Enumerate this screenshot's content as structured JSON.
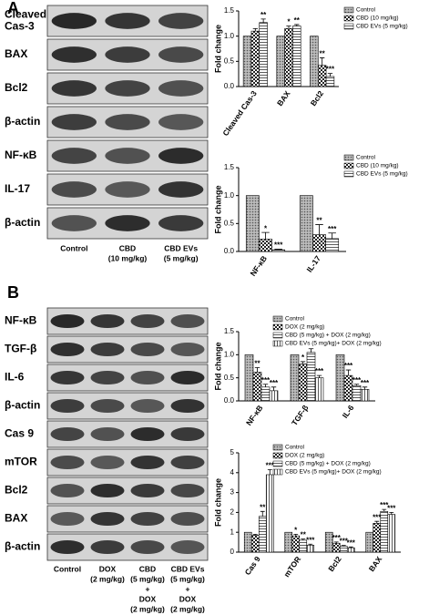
{
  "panel_labels": [
    "A",
    "B"
  ],
  "blots": [
    {
      "rows": [
        [
          "Cleaved",
          "Cas-3"
        ],
        [
          "BAX"
        ],
        [
          "Bcl2"
        ],
        [
          "β-actin"
        ],
        [
          "NF-κB"
        ],
        [
          "IL-17"
        ],
        [
          "β-actin"
        ]
      ],
      "lanes": [
        [
          "Control"
        ],
        [
          "CBD",
          "(10 mg/kg)"
        ],
        [
          "CBD EVs",
          "(5 mg/kg)"
        ]
      ]
    },
    {
      "rows": [
        [
          "NF-κB"
        ],
        [
          "TGF-β"
        ],
        [
          "IL-6"
        ],
        [
          "β-actin"
        ],
        [
          "Cas 9"
        ],
        [
          "mTOR"
        ],
        [
          "Bcl2"
        ],
        [
          "BAX"
        ],
        [
          "β-actin"
        ]
      ],
      "lanes": [
        [
          "Control"
        ],
        [
          "DOX",
          "(2 mg/kg)"
        ],
        [
          "CBD",
          "(5 mg/kg)",
          "+",
          "DOX",
          "(2 mg/kg)"
        ],
        [
          "CBD EVs",
          "(5 mg/kg)",
          "+",
          "DOX",
          "(2 mg/kg)"
        ]
      ]
    }
  ],
  "chart_data": [
    {
      "type": "bar",
      "y_label": "Fold change",
      "categories": [
        "Cleaved Cas-3",
        "BAX",
        "Bcl2"
      ],
      "ylim": [
        0,
        1.5
      ],
      "yticks": [
        {
          "value": 0,
          "label": "0.0"
        },
        {
          "value": 0.5,
          "label": "0.5"
        },
        {
          "value": 1,
          "label": "1.0"
        },
        {
          "value": 1.5,
          "label": "1.5"
        }
      ],
      "legend": "top-right",
      "series": [
        {
          "name": "Control",
          "pattern": "dots",
          "values": [
            1,
            1,
            1
          ]
        },
        {
          "name": "CBD (10 mg/kg)",
          "pattern": "checker",
          "values": [
            1.1,
            1.15,
            0.42
          ],
          "errors": [
            0.05,
            0.05,
            0.15
          ],
          "annotations": [
            null,
            "*",
            "**"
          ]
        },
        {
          "name": "CBD EVs (5 mg/kg)",
          "pattern": "hlines",
          "values": [
            1.27,
            1.2,
            0.2
          ],
          "errors": [
            0.07,
            0.03,
            0.06
          ],
          "annotations": [
            "**",
            "**",
            "***"
          ]
        }
      ]
    },
    {
      "type": "bar",
      "y_label": "Fold change",
      "categories": [
        "NF-κB",
        "IL-17"
      ],
      "ylim": [
        0,
        1.5
      ],
      "yticks": [
        {
          "value": 0,
          "label": "0.0"
        },
        {
          "value": 0.5,
          "label": "0.5"
        },
        {
          "value": 1,
          "label": "1.0"
        },
        {
          "value": 1.5,
          "label": "1.5"
        }
      ],
      "legend": "top-right",
      "series": [
        {
          "name": "Control",
          "pattern": "dots",
          "values": [
            1,
            1
          ]
        },
        {
          "name": "CBD (10 mg/kg)",
          "pattern": "checker",
          "values": [
            0.22,
            0.3
          ],
          "errors": [
            0.12,
            0.18
          ],
          "annotations": [
            "*",
            "**"
          ]
        },
        {
          "name": "CBD EVs (5 mg/kg)",
          "pattern": "hlines",
          "values": [
            0.03,
            0.23
          ],
          "errors": [
            0.01,
            0.1
          ],
          "annotations": [
            "***",
            "***"
          ]
        }
      ]
    },
    {
      "type": "bar",
      "y_label": "Fold change",
      "categories": [
        "NF-κB",
        "TGF-β",
        "IL-6"
      ],
      "ylim": [
        0,
        1.5
      ],
      "yticks": [
        {
          "value": 0,
          "label": "0.0"
        },
        {
          "value": 0.5,
          "label": "0.5"
        },
        {
          "value": 1,
          "label": "1.0"
        },
        {
          "value": 1.5,
          "label": "1.5"
        }
      ],
      "legend": "top-right",
      "series": [
        {
          "name": "Control",
          "pattern": "dots",
          "values": [
            1,
            1,
            1
          ]
        },
        {
          "name": "DOX (2 mg/kg)",
          "pattern": "checker",
          "values": [
            0.62,
            0.8,
            0.55
          ],
          "errors": [
            0.1,
            0.05,
            0.12
          ],
          "annotations": [
            "**",
            "*",
            "***"
          ]
        },
        {
          "name": "CBD (5 mg/kg) + DOX (2 mg/kg)",
          "pattern": "hlines",
          "values": [
            0.3,
            1.05,
            0.33
          ],
          "errors": [
            0.06,
            0.08,
            0.03
          ],
          "annotations": [
            "***",
            null,
            "***"
          ]
        },
        {
          "name": "CBD EVs (5 mg/kg)+ DOX (2 mg/kg)",
          "pattern": "vlines",
          "values": [
            0.22,
            0.5,
            0.25
          ],
          "errors": [
            0.08,
            0.05,
            0.05
          ],
          "annotations": [
            "***",
            "***",
            "***"
          ]
        }
      ]
    },
    {
      "type": "bar",
      "y_label": "Fold change",
      "categories": [
        "Cas 9",
        "mTOR",
        "Bcl2",
        "BAX"
      ],
      "ylim": [
        0,
        5
      ],
      "yticks": [
        0,
        1,
        2,
        3,
        4,
        5
      ],
      "legend": "top-right",
      "series": [
        {
          "name": "Control",
          "pattern": "dots",
          "values": [
            1,
            1,
            1,
            1
          ]
        },
        {
          "name": "DOX (2 mg/kg)",
          "pattern": "checker",
          "values": [
            0.85,
            0.82,
            0.45,
            1.45
          ],
          "errors": [
            0.05,
            0.08,
            0.06,
            0.1
          ],
          "annotations": [
            null,
            "*",
            "***",
            "***"
          ]
        },
        {
          "name": "CBD (5 mg/kg) + DOX (2 mg/kg)",
          "pattern": "hlines",
          "values": [
            1.8,
            0.6,
            0.3,
            2.05
          ],
          "errors": [
            0.25,
            0.06,
            0.04,
            0.1
          ],
          "annotations": [
            "**",
            "**",
            "***",
            "***"
          ]
        },
        {
          "name": "CBD EVs (5 mg/kg)+ DOX (2 mg/kg)",
          "pattern": "vlines",
          "values": [
            3.9,
            0.35,
            0.22,
            1.9
          ],
          "errors": [
            0.25,
            0.05,
            0.04,
            0.1
          ],
          "annotations": [
            "***",
            "***",
            "***",
            "***"
          ]
        }
      ]
    }
  ]
}
